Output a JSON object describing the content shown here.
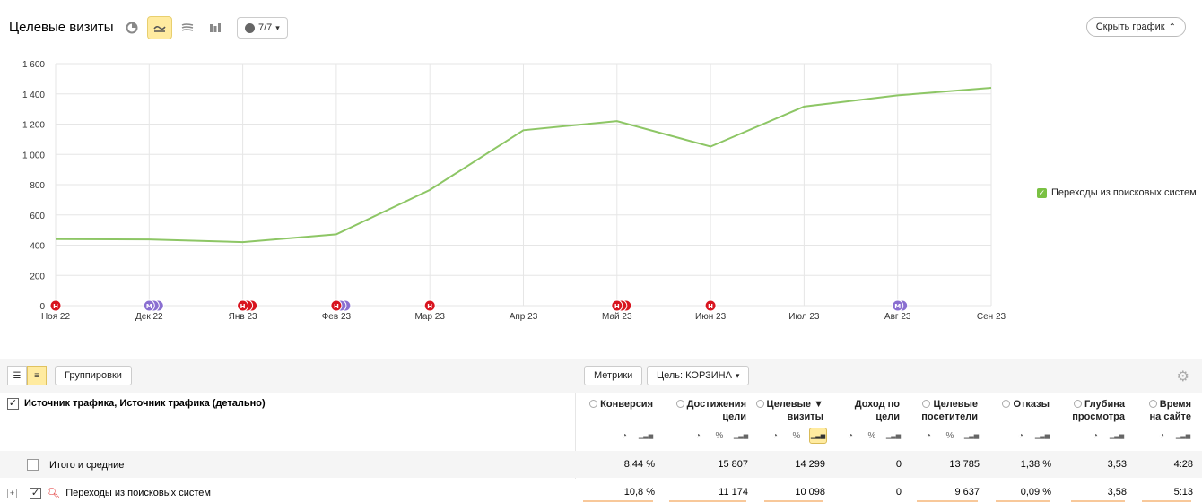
{
  "header": {
    "title": "Целевые визиты",
    "goals_counter": "7/7",
    "hide_chart_label": "Скрыть график"
  },
  "chart_data": {
    "type": "line",
    "categories": [
      "Ноя 22",
      "Дек 22",
      "Янв 23",
      "Фев 23",
      "Мар 23",
      "Апр 23",
      "Май 23",
      "Июн 23",
      "Июл 23",
      "Авг 23",
      "Сен 23"
    ],
    "series": [
      {
        "name": "Переходы из поисковых систем",
        "values": [
          440,
          438,
          420,
          472,
          765,
          1160,
          1220,
          1052,
          1316,
          1390,
          1440
        ],
        "color": "#8dc665"
      }
    ],
    "yticks": [
      "0",
      "200",
      "400",
      "600",
      "800",
      "1 000",
      "1 200",
      "1 400",
      "1 600"
    ],
    "ylim": [
      0,
      1600
    ],
    "grid": true,
    "legend": "right",
    "annotations": [
      {
        "category": "Ноя 22",
        "type": "red",
        "count": 1,
        "letter": "Н"
      },
      {
        "category": "Дек 22",
        "type": "purple",
        "count": 3,
        "letter": "М"
      },
      {
        "category": "Янв 23",
        "type": "red",
        "count": 3,
        "letter": "Н"
      },
      {
        "category": "Фев 23",
        "type": "mixed",
        "count": 3,
        "letter": "Н"
      },
      {
        "category": "Мар 23",
        "type": "red",
        "count": 1,
        "letter": "Н"
      },
      {
        "category": "Май 23",
        "type": "red",
        "count": 3,
        "letter": "Н"
      },
      {
        "category": "Июн 23",
        "type": "red",
        "count": 1,
        "letter": "Н"
      },
      {
        "category": "Авг 23",
        "type": "purple",
        "count": 2,
        "letter": "М"
      }
    ]
  },
  "legend": {
    "label": "Переходы из поисковых систем"
  },
  "toolbar": {
    "groupings_label": "Группировки",
    "metrics_label": "Метрики",
    "goal_label": "Цель: КОРЗИНА"
  },
  "table": {
    "dimension_header": "Источник трафика, Источник трафика (детально)",
    "columns": [
      {
        "l1": "Конверсия",
        "l2": ""
      },
      {
        "l1": "Достижения",
        "l2": "цели"
      },
      {
        "l1": "Целевые ▼",
        "l2": "визиты"
      },
      {
        "l1": "Доход по",
        "l2": "цели"
      },
      {
        "l1": "Целевые",
        "l2": "посетители"
      },
      {
        "l1": "Отказы",
        "l2": ""
      },
      {
        "l1": "Глубина",
        "l2": "просмотра"
      },
      {
        "l1": "Время",
        "l2": "на сайте"
      }
    ],
    "total": {
      "label": "Итого и средние",
      "values": [
        "8,44 %",
        "15 807",
        "14 299",
        "0",
        "13 785",
        "1,38 %",
        "3,53",
        "4:28"
      ]
    },
    "rows": [
      {
        "label": "Переходы из поисковых систем",
        "values": [
          "10,8 %",
          "11 174",
          "10 098",
          "0",
          "9 637",
          "0,09 %",
          "3,58",
          "5:13"
        ]
      }
    ]
  }
}
